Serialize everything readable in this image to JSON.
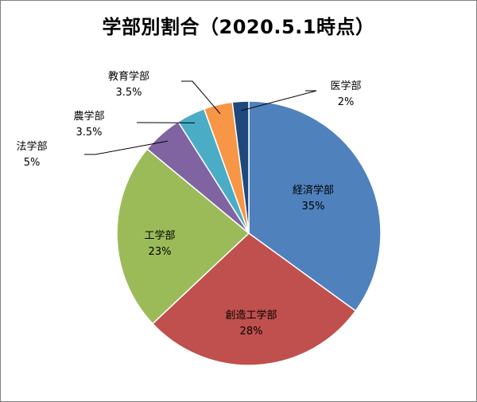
{
  "chart_data": {
    "type": "pie",
    "title": "学部別割合（2020.5.1時点）",
    "slices": [
      {
        "name": "経済学部",
        "value": 35,
        "label": "35%",
        "color": "#4f81bd"
      },
      {
        "name": "創造工学部",
        "value": 28,
        "label": "28%",
        "color": "#c0504d"
      },
      {
        "name": "工学部",
        "value": 23,
        "label": "23%",
        "color": "#9bbb59"
      },
      {
        "name": "法学部",
        "value": 5,
        "label": "5%",
        "color": "#8064a2"
      },
      {
        "name": "農学部",
        "value": 3.5,
        "label": "3.5%",
        "color": "#4bacc6"
      },
      {
        "name": "教育学部",
        "value": 3.5,
        "label": "3.5%",
        "color": "#f79646"
      },
      {
        "name": "医学部",
        "value": 2,
        "label": "2%",
        "color": "#1f497d"
      }
    ],
    "start": "12 o'clock",
    "direction": "clockwise",
    "legend": "none"
  }
}
